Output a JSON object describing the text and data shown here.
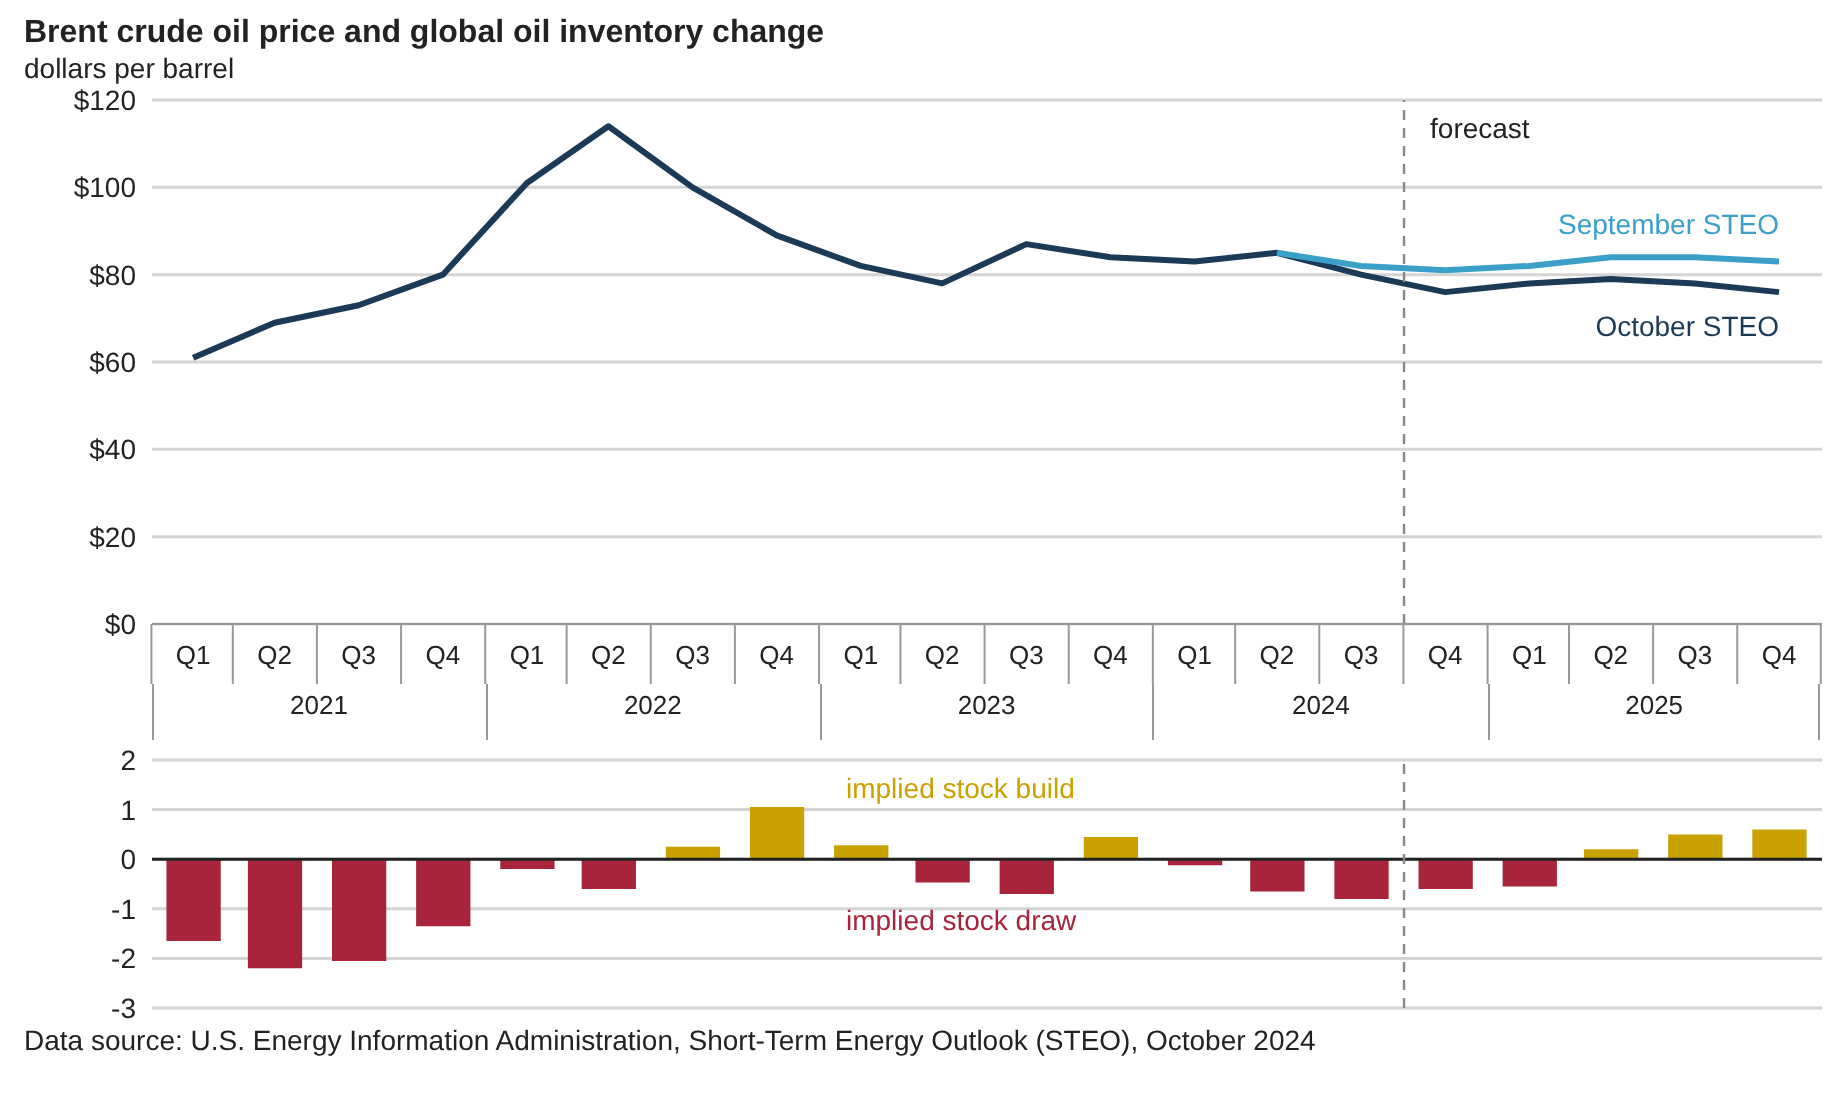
{
  "chart_data": [
    {
      "type": "line",
      "title": "Brent crude oil price and global oil inventory change",
      "ylabel": "dollars per barrel",
      "x": [
        "2021-02-15",
        "2021-05-15",
        "2021-08-15",
        "2021-11-15",
        "2022-02-15",
        "2022-05-15",
        "2022-08-15",
        "2022-11-15",
        "2023-02-15",
        "2023-05-15",
        "2023-08-15",
        "2023-11-15",
        "2024-02-15",
        "2024-05-15",
        "2024-08-15",
        "2024-11-15",
        "2025-02-15",
        "2025-05-15",
        "2025-08-15",
        "2025-11-15"
      ],
      "xlim": [
        "2021-01-01",
        "2026-01-01"
      ],
      "xticks": [
        {
          "value": "2021-02-15",
          "label": "Q1"
        },
        {
          "value": "2021-05-15",
          "label": "Q2"
        },
        {
          "value": "2021-08-15",
          "label": "Q3"
        },
        {
          "value": "2021-11-15",
          "label": "Q4"
        },
        {
          "value": "2022-02-15",
          "label": "Q1"
        },
        {
          "value": "2022-05-15",
          "label": "Q2"
        },
        {
          "value": "2022-08-15",
          "label": "Q3"
        },
        {
          "value": "2022-11-15",
          "label": "Q4"
        },
        {
          "value": "2023-02-15",
          "label": "Q1"
        },
        {
          "value": "2023-05-15",
          "label": "Q2"
        },
        {
          "value": "2023-08-15",
          "label": "Q3"
        },
        {
          "value": "2023-11-15",
          "label": "Q4"
        },
        {
          "value": "2024-02-15",
          "label": "Q1"
        },
        {
          "value": "2024-05-15",
          "label": "Q2"
        },
        {
          "value": "2024-08-15",
          "label": "Q3"
        },
        {
          "value": "2024-11-15",
          "label": "Q4"
        },
        {
          "value": "2025-02-15",
          "label": "Q1"
        },
        {
          "value": "2025-05-15",
          "label": "Q2"
        },
        {
          "value": "2025-08-15",
          "label": "Q3"
        },
        {
          "value": "2025-11-15",
          "label": "Q4"
        }
      ],
      "series": [
        {
          "name": "October STEO",
          "color": "#1b3a57",
          "values": [
            61,
            69,
            73,
            80,
            101,
            114,
            100,
            89,
            82,
            78,
            87,
            84,
            83,
            85,
            80,
            76,
            78,
            79,
            78,
            76
          ]
        },
        {
          "name": "September STEO",
          "color": "#3aa0c8",
          "values": [
            null,
            null,
            null,
            null,
            null,
            null,
            null,
            null,
            null,
            null,
            null,
            null,
            null,
            85,
            82,
            81,
            82,
            84,
            84,
            83
          ]
        }
      ],
      "ylim": [
        0,
        120
      ],
      "yticks": [
        {
          "value": 0,
          "label": "$0"
        },
        {
          "value": 20,
          "label": "$20"
        },
        {
          "value": 40,
          "label": "$40"
        },
        {
          "value": 60,
          "label": "$60"
        },
        {
          "value": 80,
          "label": "$80"
        },
        {
          "value": 100,
          "label": "$100"
        },
        {
          "value": 120,
          "label": "$120"
        }
      ],
      "grid": "y",
      "marker": "none",
      "line_style": "solid",
      "ref_lines": [
        {
          "axis": "x",
          "value": "2024-10-01",
          "label": "forecast",
          "color": "#888888",
          "line_style": "dashed"
        }
      ],
      "annotations": [
        "2021",
        "2022",
        "2023",
        "2024",
        "2025"
      ]
    },
    {
      "type": "bar",
      "x": [
        "2021-02-15",
        "2021-05-15",
        "2021-08-15",
        "2021-11-15",
        "2022-02-15",
        "2022-05-15",
        "2022-08-15",
        "2022-11-15",
        "2023-02-15",
        "2023-05-15",
        "2023-08-15",
        "2023-11-15",
        "2024-02-15",
        "2024-05-15",
        "2024-08-15",
        "2024-11-15",
        "2025-02-15",
        "2025-05-15",
        "2025-08-15",
        "2025-11-15"
      ],
      "xlim": [
        "2021-01-01",
        "2026-01-01"
      ],
      "values": [
        -1.65,
        -2.2,
        -2.05,
        -1.35,
        -0.2,
        -0.6,
        0.25,
        1.05,
        0.28,
        -0.47,
        -0.7,
        0.45,
        -0.12,
        -0.65,
        -0.8,
        -0.6,
        -0.55,
        0.2,
        0.5,
        0.6
      ],
      "colors": [
        "#a8243a",
        "#a8243a",
        "#a8243a",
        "#a8243a",
        "#a8243a",
        "#a8243a",
        "#c9a100",
        "#c9a100",
        "#c9a100",
        "#a8243a",
        "#a8243a",
        "#c9a100",
        "#a8243a",
        "#a8243a",
        "#a8243a",
        "#a8243a",
        "#a8243a",
        "#c9a100",
        "#c9a100",
        "#c9a100"
      ],
      "ylim": [
        -3,
        2
      ],
      "yticks": [
        -3,
        -2,
        -1,
        0,
        1,
        2
      ],
      "grid": "y",
      "tick_labels": "y",
      "ref_lines": [
        {
          "axis": "y",
          "value": 0,
          "color": "#222222"
        },
        {
          "axis": "x",
          "value": "2024-10-01",
          "color": "#888888",
          "line_style": "dashed"
        }
      ],
      "annotations": [
        "implied stock build",
        "implied stock draw",
        "Data source: U.S. Energy Information Administration, Short-Term Energy Outlook (STEO), October 2024"
      ]
    }
  ]
}
